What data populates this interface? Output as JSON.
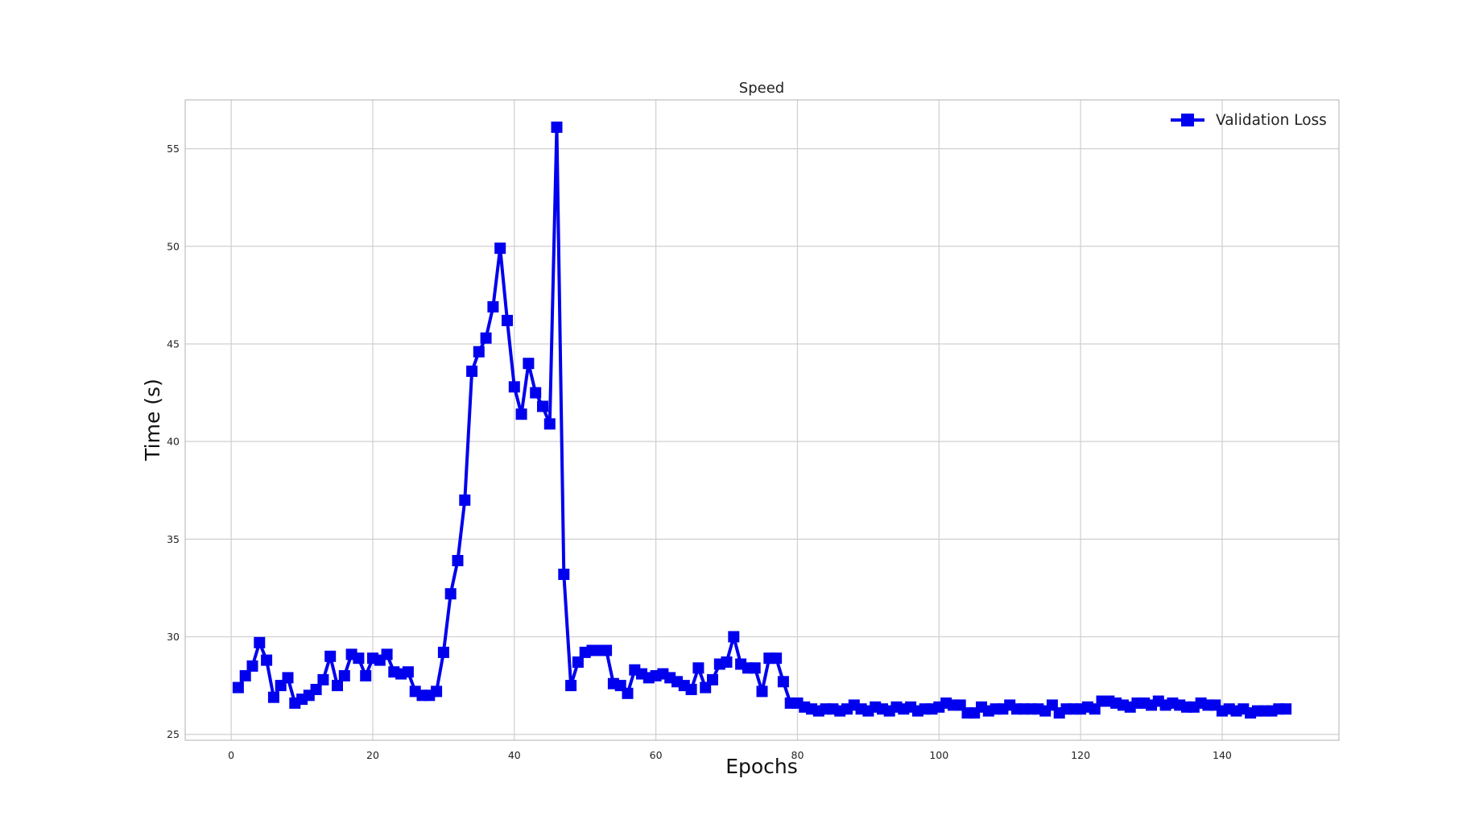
{
  "chart_data": {
    "type": "line",
    "title": "Speed",
    "xlabel": "Epochs",
    "ylabel": "Time (s)",
    "xlim": [
      -6.5,
      156.5
    ],
    "ylim": [
      24.7,
      57.5
    ],
    "xticks": [
      0,
      20,
      40,
      60,
      80,
      100,
      120,
      140
    ],
    "yticks": [
      25,
      30,
      35,
      40,
      45,
      50,
      55
    ],
    "grid": true,
    "legend_position": "top-right",
    "marker": "square",
    "series": [
      {
        "name": "Validation Loss",
        "color": "#0000ee",
        "x": [
          1,
          2,
          3,
          4,
          5,
          6,
          7,
          8,
          9,
          10,
          11,
          12,
          13,
          14,
          15,
          16,
          17,
          18,
          19,
          20,
          21,
          22,
          23,
          24,
          25,
          26,
          27,
          28,
          29,
          30,
          31,
          32,
          33,
          34,
          35,
          36,
          37,
          38,
          39,
          40,
          41,
          42,
          43,
          44,
          45,
          46,
          47,
          48,
          49,
          50,
          51,
          52,
          53,
          54,
          55,
          56,
          57,
          58,
          59,
          60,
          61,
          62,
          63,
          64,
          65,
          66,
          67,
          68,
          69,
          70,
          71,
          72,
          73,
          74,
          75,
          76,
          77,
          78,
          79,
          80,
          81,
          82,
          83,
          84,
          85,
          86,
          87,
          88,
          89,
          90,
          91,
          92,
          93,
          94,
          95,
          96,
          97,
          98,
          99,
          100,
          101,
          102,
          103,
          104,
          105,
          106,
          107,
          108,
          109,
          110,
          111,
          112,
          113,
          114,
          115,
          116,
          117,
          118,
          119,
          120,
          121,
          122,
          123,
          124,
          125,
          126,
          127,
          128,
          129,
          130,
          131,
          132,
          133,
          134,
          135,
          136,
          137,
          138,
          139,
          140,
          141,
          142,
          143,
          144,
          145,
          146,
          147,
          148,
          149
        ],
        "values": [
          27.4,
          28.0,
          28.5,
          29.7,
          28.8,
          26.9,
          27.5,
          27.9,
          26.6,
          26.8,
          27.0,
          27.3,
          27.8,
          29.0,
          27.5,
          28.0,
          29.1,
          28.9,
          28.0,
          28.9,
          28.8,
          29.1,
          28.2,
          28.1,
          28.2,
          27.2,
          27.0,
          27.0,
          27.2,
          29.2,
          32.2,
          33.9,
          37.0,
          43.6,
          44.6,
          45.3,
          46.9,
          49.9,
          46.2,
          42.8,
          41.4,
          44.0,
          42.5,
          41.8,
          40.9,
          56.1,
          33.2,
          27.5,
          28.7,
          29.2,
          29.3,
          29.3,
          29.3,
          27.6,
          27.5,
          27.1,
          28.3,
          28.1,
          27.9,
          28.0,
          28.1,
          27.9,
          27.7,
          27.5,
          27.3,
          28.4,
          27.4,
          27.8,
          28.6,
          28.7,
          30.0,
          28.6,
          28.4,
          28.4,
          27.2,
          28.9,
          28.9,
          27.7,
          26.6,
          26.6,
          26.4,
          26.3,
          26.2,
          26.3,
          26.3,
          26.2,
          26.3,
          26.5,
          26.3,
          26.2,
          26.4,
          26.3,
          26.2,
          26.4,
          26.3,
          26.4,
          26.2,
          26.3,
          26.3,
          26.4,
          26.6,
          26.5,
          26.5,
          26.1,
          26.1,
          26.4,
          26.2,
          26.3,
          26.3,
          26.5,
          26.3,
          26.3,
          26.3,
          26.3,
          26.2,
          26.5,
          26.1,
          26.3,
          26.3,
          26.3,
          26.4,
          26.3,
          26.7,
          26.7,
          26.6,
          26.5,
          26.4,
          26.6,
          26.6,
          26.5,
          26.7,
          26.5,
          26.6,
          26.5,
          26.4,
          26.4,
          26.6,
          26.5,
          26.5,
          26.2,
          26.3,
          26.2,
          26.3,
          26.1,
          26.2,
          26.2,
          26.2,
          26.3,
          26.3
        ]
      }
    ]
  }
}
